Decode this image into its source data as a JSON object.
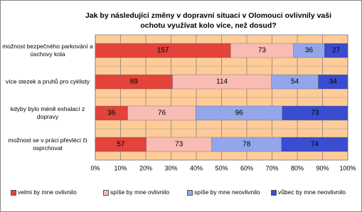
{
  "chart_data": {
    "type": "stacked_bar_100",
    "orientation": "horizontal",
    "title": "Jak by následující změny v dopravní situaci v Olomouci ovlivnily vaši ochotu využívat kolo více, než dosud?",
    "categories": [
      "možnost bezpečného parkování a úschovy kola",
      "více stezek a pruhů pro cyklisty",
      "kdyby bylo méně exhalací z dopravy",
      "možnost se v práci převléci či osprchovat"
    ],
    "series": [
      {
        "name": "velmi by mne ovlivnilo",
        "color": "#e2433b",
        "values": [
          157,
          89,
          36,
          57
        ]
      },
      {
        "name": "spíše by mne ovlivnilo",
        "color": "#f8bcb4",
        "values": [
          73,
          114,
          76,
          73
        ]
      },
      {
        "name": "spíše by mne neovlivnilo",
        "color": "#93a6ea",
        "values": [
          36,
          54,
          96,
          78
        ]
      },
      {
        "name": "vůbec by mne neovlivnilo",
        "color": "#3a4ccf",
        "values": [
          27,
          34,
          73,
          74
        ]
      }
    ],
    "xlim": [
      0,
      100
    ],
    "xticks": [
      {
        "value": 0,
        "label": "0%"
      },
      {
        "value": 10,
        "label": "10%"
      },
      {
        "value": 20,
        "label": "20%"
      },
      {
        "value": 30,
        "label": "30%"
      },
      {
        "value": 40,
        "label": "40%"
      },
      {
        "value": 50,
        "label": "50%"
      },
      {
        "value": 60,
        "label": "60%"
      },
      {
        "value": 70,
        "label": "70%"
      },
      {
        "value": 80,
        "label": "80%"
      },
      {
        "value": 90,
        "label": "90%"
      },
      {
        "value": 100,
        "label": "100%"
      }
    ],
    "grid": true,
    "background": "#ffcc99",
    "legend": "bottom"
  }
}
